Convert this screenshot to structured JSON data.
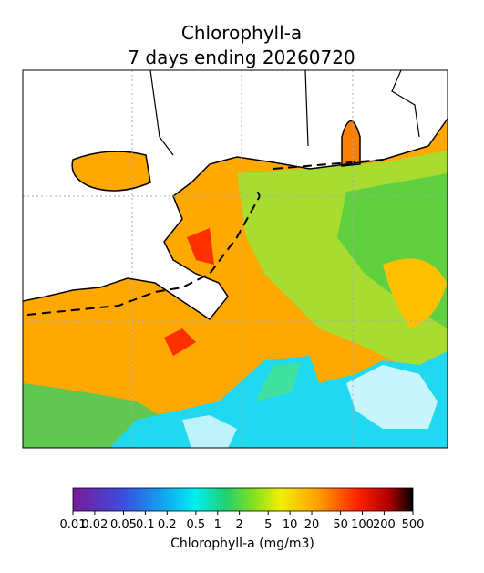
{
  "title": {
    "line1": "Chlorophyll-a",
    "line2": "7 days ending 20260720"
  },
  "colorbar": {
    "label": "Chlorophyll-a (mg/m3)",
    "scale": "log",
    "lim": [
      0.01,
      500
    ],
    "ticks": [
      0.01,
      0.02,
      0.05,
      0.1,
      0.2,
      0.5,
      1,
      2,
      5,
      10,
      20,
      50,
      100,
      200,
      500
    ]
  }
}
